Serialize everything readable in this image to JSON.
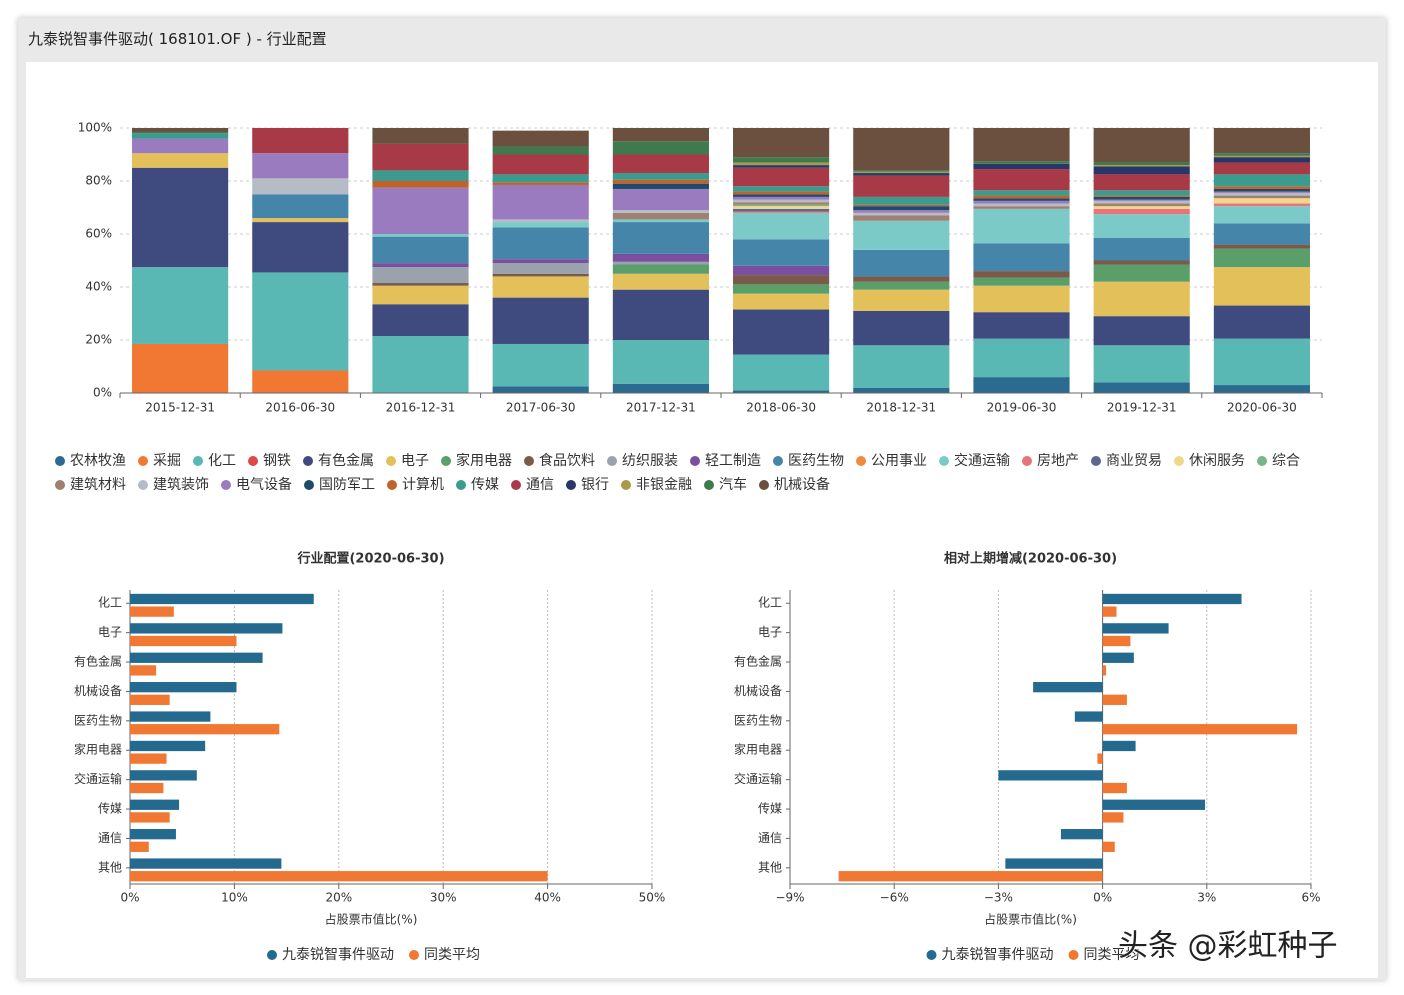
{
  "window": {
    "title": "九泰锐智事件驱动( 168101.OF ) - 行业配置"
  },
  "watermark": "头条 @彩虹种子",
  "chart_data": [
    {
      "type": "bar",
      "stacked": true,
      "legend": "bottom",
      "categories": [
        "2015-12-31",
        "2016-06-30",
        "2016-12-31",
        "2017-06-30",
        "2017-12-31",
        "2018-06-30",
        "2018-12-31",
        "2019-06-30",
        "2019-12-31",
        "2020-06-30"
      ],
      "ylim": [
        0,
        100
      ],
      "yticks": [
        {
          "value": 0,
          "label": "0%"
        },
        {
          "value": 20,
          "label": "20%"
        },
        {
          "value": 40,
          "label": "40%"
        },
        {
          "value": 60,
          "label": "60%"
        },
        {
          "value": 80,
          "label": "80%"
        },
        {
          "value": 100,
          "label": "100%"
        }
      ],
      "grid": true,
      "series": [
        {
          "name": "农林牧渔",
          "color": "#2a6b8f",
          "values": [
            0,
            0,
            0,
            2.5,
            3.5,
            1,
            2,
            6,
            4,
            3
          ]
        },
        {
          "name": "采掘",
          "color": "#f07832",
          "values": [
            18.5,
            8.5,
            0,
            0,
            0,
            0,
            0,
            0,
            0,
            0
          ]
        },
        {
          "name": "化工",
          "color": "#5ab8b4",
          "values": [
            29,
            37,
            21.5,
            16,
            16.5,
            13.5,
            16,
            14.5,
            14,
            17.5
          ]
        },
        {
          "name": "钢铁",
          "color": "#e0474c",
          "values": [
            0,
            0,
            0,
            0,
            0,
            0,
            0,
            0,
            0,
            0
          ]
        },
        {
          "name": "有色金属",
          "color": "#3f4b7e",
          "values": [
            37.5,
            19,
            12,
            17.5,
            19,
            17,
            13,
            10,
            11,
            12.5
          ]
        },
        {
          "name": "电子",
          "color": "#e3c05a",
          "values": [
            5.5,
            1.5,
            7,
            8,
            6,
            6,
            8,
            10,
            13,
            14.5
          ]
        },
        {
          "name": "家用电器",
          "color": "#5a9e6a",
          "values": [
            0,
            0,
            0,
            0,
            3.5,
            3.5,
            3,
            3,
            6.5,
            7
          ]
        },
        {
          "name": "食品饮料",
          "color": "#7a5a48",
          "values": [
            0,
            0,
            1,
            1,
            0,
            3.5,
            2,
            2.5,
            1.5,
            1.5
          ]
        },
        {
          "name": "纺织服装",
          "color": "#9aa3ad",
          "values": [
            0,
            0,
            6,
            4,
            1,
            0,
            0,
            0,
            0,
            0
          ]
        },
        {
          "name": "轻工制造",
          "color": "#7b4fa0",
          "values": [
            0,
            0,
            1.5,
            1.5,
            3,
            3.5,
            0,
            0,
            0,
            0
          ]
        },
        {
          "name": "医药生物",
          "color": "#4585aa",
          "values": [
            0,
            9,
            10,
            12,
            12,
            10,
            10,
            10.5,
            8.5,
            8
          ]
        },
        {
          "name": "公用事业",
          "color": "#f08a3c",
          "values": [
            0,
            0,
            0,
            0,
            0,
            0,
            0,
            0,
            0,
            0
          ]
        },
        {
          "name": "交通运输",
          "color": "#7ccac8",
          "values": [
            0,
            0,
            1,
            2,
            1,
            10,
            11,
            13,
            9,
            6.5
          ]
        },
        {
          "name": "房地产",
          "color": "#e8737a",
          "values": [
            0,
            0,
            0,
            0,
            0,
            0.5,
            0,
            0,
            2,
            1
          ]
        },
        {
          "name": "商业贸易",
          "color": "#5b6890",
          "values": [
            0,
            0,
            0,
            0,
            0,
            1,
            0,
            0,
            0,
            0
          ]
        },
        {
          "name": "休闲服务",
          "color": "#f0d88a",
          "values": [
            0,
            0,
            0,
            0,
            0,
            1,
            0,
            0,
            1,
            2
          ]
        },
        {
          "name": "综合",
          "color": "#79b48a",
          "values": [
            0,
            0,
            0,
            0,
            0,
            0.5,
            0,
            0,
            0,
            0
          ]
        },
        {
          "name": "建筑材料",
          "color": "#a08070",
          "values": [
            0,
            0,
            0,
            0,
            2.5,
            1,
            2,
            1,
            1,
            1
          ]
        },
        {
          "name": "建筑装饰",
          "color": "#b5bcc5",
          "values": [
            0,
            6,
            0,
            1,
            1,
            1,
            1,
            1,
            1,
            1
          ]
        },
        {
          "name": "电气设备",
          "color": "#9b7bbf",
          "values": [
            5.5,
            9.5,
            17.5,
            13,
            8,
            1,
            1,
            1,
            0.5,
            0.5
          ]
        },
        {
          "name": "国防军工",
          "color": "#1f4a6a",
          "values": [
            0,
            0,
            0,
            0,
            2,
            1,
            1.5,
            1,
            1,
            1
          ]
        },
        {
          "name": "计算机",
          "color": "#c0622a",
          "values": [
            0,
            0,
            2.5,
            1,
            1.5,
            1,
            0.5,
            1,
            0.5,
            1
          ]
        },
        {
          "name": "传媒",
          "color": "#3a9b8e",
          "values": [
            2,
            0,
            4,
            3,
            2.5,
            2,
            3,
            2,
            2,
            4.5
          ]
        },
        {
          "name": "通信",
          "color": "#a83a48",
          "values": [
            0,
            9.5,
            10,
            7.5,
            7,
            7,
            8,
            8,
            6,
            4.5
          ]
        },
        {
          "name": "银行",
          "color": "#2a3668",
          "values": [
            0,
            0,
            0,
            0,
            0,
            1,
            1,
            2,
            3,
            2
          ]
        },
        {
          "name": "非银金融",
          "color": "#a89a4a",
          "values": [
            0,
            0,
            0,
            0,
            0,
            1,
            0.5,
            0,
            0.5,
            0.5
          ]
        },
        {
          "name": "汽车",
          "color": "#3f7a4e",
          "values": [
            0.5,
            0,
            0,
            3,
            5,
            2,
            0.5,
            1,
            1,
            1
          ]
        },
        {
          "name": "机械设备",
          "color": "#6b5040",
          "values": [
            1.5,
            0,
            6,
            6,
            5,
            11,
            16,
            12.5,
            13,
            9.5
          ]
        }
      ]
    },
    {
      "type": "bar",
      "horizontal": true,
      "legend": "bottom",
      "grid": true,
      "title": "行业配置(2020-06-30)",
      "x_label": "占股票市值比(%)",
      "categories": [
        "化工",
        "电子",
        "有色金属",
        "机械设备",
        "医药生物",
        "家用电器",
        "交通运输",
        "传媒",
        "通信",
        "其他"
      ],
      "xlim": [
        0,
        50
      ],
      "xticks": [
        {
          "value": 0,
          "label": "0%"
        },
        {
          "value": 10,
          "label": "10%"
        },
        {
          "value": 20,
          "label": "20%"
        },
        {
          "value": 30,
          "label": "30%"
        },
        {
          "value": 40,
          "label": "40%"
        },
        {
          "value": 50,
          "label": "50%"
        }
      ],
      "series": [
        {
          "name": "九泰锐智事件驱动",
          "color": "#236a8e",
          "values": [
            17.6,
            14.6,
            12.7,
            10.2,
            7.7,
            7.2,
            6.4,
            4.7,
            4.4,
            14.5
          ]
        },
        {
          "name": "同类平均",
          "color": "#f07832",
          "values": [
            4.2,
            10.2,
            2.5,
            3.8,
            14.3,
            3.5,
            3.2,
            3.8,
            1.8,
            40
          ]
        }
      ]
    },
    {
      "type": "bar",
      "horizontal": true,
      "legend": "bottom",
      "grid": true,
      "title": "相对上期增减(2020-06-30)",
      "x_label": "占股票市值比(%)",
      "categories": [
        "化工",
        "电子",
        "有色金属",
        "机械设备",
        "医药生物",
        "家用电器",
        "交通运输",
        "传媒",
        "通信",
        "其他"
      ],
      "xlim": [
        -9,
        6
      ],
      "xticks": [
        {
          "value": -9,
          "label": "−9%"
        },
        {
          "value": -6,
          "label": "−6%"
        },
        {
          "value": -3,
          "label": "−3%"
        },
        {
          "value": 0,
          "label": "0%"
        },
        {
          "value": 3,
          "label": "3%"
        },
        {
          "value": 6,
          "label": "6%"
        }
      ],
      "series": [
        {
          "name": "九泰锐智事件驱动",
          "color": "#236a8e",
          "values": [
            4.0,
            1.9,
            0.9,
            -2.0,
            -0.8,
            0.95,
            -3.0,
            2.95,
            -1.2,
            -2.8
          ]
        },
        {
          "name": "同类平均",
          "color": "#f07832",
          "values": [
            0.4,
            0.8,
            0.1,
            0.7,
            5.6,
            -0.15,
            0.7,
            0.6,
            0.35,
            -7.6
          ]
        }
      ]
    }
  ]
}
